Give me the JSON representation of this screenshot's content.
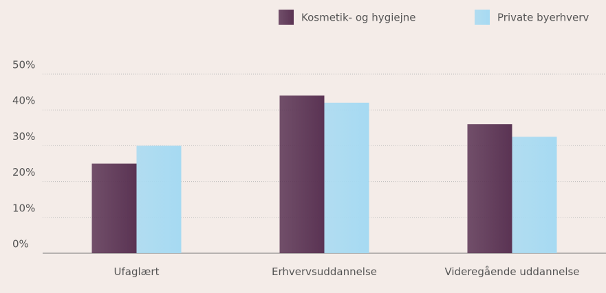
{
  "chart_data": {
    "type": "bar",
    "categories": [
      "Ufaglært",
      "Erhvervsuddannelse",
      "Videregående uddannelse"
    ],
    "series": [
      {
        "name": "Kosmetik- og hygiejne",
        "color": "#5a3353",
        "values": [
          25,
          44,
          36
        ]
      },
      {
        "name": "Private byerhverv",
        "color": "#a6daf2",
        "values": [
          30,
          42,
          32.5
        ]
      }
    ],
    "ylim": [
      0,
      50
    ],
    "yticks": [
      {
        "value": 0,
        "label": "0%"
      },
      {
        "value": 10,
        "label": "10%"
      },
      {
        "value": 20,
        "label": "20%"
      },
      {
        "value": 30,
        "label": "30%"
      },
      {
        "value": 40,
        "label": "40%"
      },
      {
        "value": 50,
        "label": "50%"
      }
    ],
    "grid": true,
    "legend": "top"
  }
}
